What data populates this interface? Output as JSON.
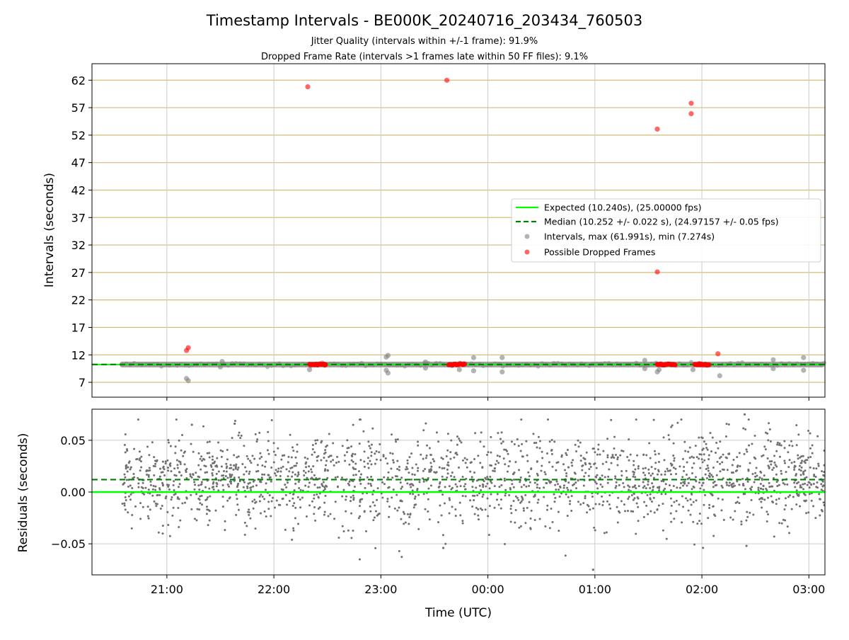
{
  "header": {
    "title": "Timestamp Intervals - BE000K_20240716_203434_760503",
    "subtitle_jitter": "Jitter Quality (intervals within +/-1 frame): 91.9%",
    "subtitle_dropped": "Dropped Frame Rate (intervals >1 frames late within 50 FF files): 9.1%"
  },
  "colors": {
    "expected": "#00ff00",
    "median": "#008000",
    "intervals": "#808080",
    "dropped": "#ff0000",
    "hgrid": "#d4bb78",
    "vgrid": "#cccccc"
  },
  "chart_data": [
    {
      "type": "scatter",
      "panel": "intervals",
      "ylabel": "Intervals (seconds)",
      "xlabel": "",
      "ylim": [
        4.3,
        65.0
      ],
      "xlim": [
        "20:18",
        "03:09"
      ],
      "grid": "on",
      "legend_position": "center-right",
      "yticks": [
        7,
        12,
        17,
        22,
        27,
        32,
        37,
        42,
        47,
        52,
        57,
        62
      ],
      "ytick_labels": [
        "7",
        "12",
        "17",
        "22",
        "27",
        "32",
        "37",
        "42",
        "47",
        "52",
        "57",
        "62"
      ],
      "x_range": [
        "20:35",
        "03:09"
      ],
      "reference_lines": [
        {
          "name": "Expected (10.240s), (25.00000 fps)",
          "value": 10.24,
          "style": "solid"
        },
        {
          "name": "Median (10.252 +/- 0.022 s), (24.97157 +/- 0.05 fps)",
          "value": 10.252,
          "style": "dashed"
        }
      ],
      "series": [
        {
          "name": "Intervals, max (61.991s), min (7.274s)",
          "outliers": [
            {
              "x": "21:11",
              "y": 7.7
            },
            {
              "x": "21:12",
              "y": 7.3
            },
            {
              "x": "21:30",
              "y": 9.8
            },
            {
              "x": "21:31",
              "y": 10.8
            },
            {
              "x": "22:20",
              "y": 9.3
            },
            {
              "x": "23:03",
              "y": 11.6
            },
            {
              "x": "23:04",
              "y": 11.9
            },
            {
              "x": "23:03",
              "y": 9.2
            },
            {
              "x": "23:04",
              "y": 8.7
            },
            {
              "x": "23:25",
              "y": 10.7
            },
            {
              "x": "23:25",
              "y": 9.6
            },
            {
              "x": "23:44",
              "y": 9.3
            },
            {
              "x": "23:52",
              "y": 11.5
            },
            {
              "x": "23:52",
              "y": 9.1
            },
            {
              "x": "00:08",
              "y": 11.5
            },
            {
              "x": "00:08",
              "y": 8.9
            },
            {
              "x": "01:28",
              "y": 11.0
            },
            {
              "x": "01:28",
              "y": 9.5
            },
            {
              "x": "01:35",
              "y": 8.9
            },
            {
              "x": "01:36",
              "y": 9.3
            },
            {
              "x": "01:55",
              "y": 9.3
            },
            {
              "x": "02:10",
              "y": 8.2
            },
            {
              "x": "02:40",
              "y": 11.1
            },
            {
              "x": "02:40",
              "y": 9.5
            },
            {
              "x": "02:57",
              "y": 11.5
            },
            {
              "x": "02:57",
              "y": 9.2
            }
          ]
        },
        {
          "name": "Possible Dropped Frames",
          "points": [
            {
              "x": "21:11",
              "y": 12.8
            },
            {
              "x": "21:12",
              "y": 13.3
            },
            {
              "x": "22:19",
              "y": 60.8
            },
            {
              "x": "23:37",
              "y": 61.99
            },
            {
              "x": "01:35",
              "y": 53.1
            },
            {
              "x": "01:35",
              "y": 27.1
            },
            {
              "x": "01:54",
              "y": 57.8
            },
            {
              "x": "01:54",
              "y": 55.9
            },
            {
              "x": "02:09",
              "y": 12.2
            }
          ],
          "clusters": [
            [
              "22:20",
              "22:29"
            ],
            [
              "23:38",
              "23:47"
            ],
            [
              "01:35",
              "01:45"
            ],
            [
              "01:56",
              "02:04"
            ]
          ]
        }
      ],
      "legend": [
        "Expected (10.240s), (25.00000 fps)",
        "Median (10.252 +/- 0.022 s), (24.97157 +/- 0.05 fps)",
        "Intervals, max (61.991s), min (7.274s)",
        "Possible Dropped Frames"
      ]
    },
    {
      "type": "scatter",
      "panel": "residuals",
      "ylabel": "Residuals (seconds)",
      "xlabel": "Time (UTC)",
      "ylim": [
        -0.08,
        0.08
      ],
      "yticks": [
        -0.05,
        0.0,
        0.05
      ],
      "ytick_labels": [
        "−0.05",
        "0.00",
        "0.05"
      ],
      "xticks": [
        "21:00",
        "22:00",
        "23:00",
        "00:00",
        "01:00",
        "02:00",
        "03:00"
      ],
      "xtick_labels": [
        "21:00",
        "22:00",
        "23:00",
        "00:00",
        "01:00",
        "02:00",
        "03:00"
      ],
      "grid": "on",
      "reference_lines": [
        {
          "value": 0.0,
          "style": "solid",
          "color": "#00ff00"
        },
        {
          "value": 0.012,
          "style": "dashed",
          "color": "#008000"
        }
      ],
      "residual_sample": {
        "x_range": [
          "20:35",
          "03:09"
        ],
        "mean": 0.012,
        "spread": 0.022,
        "count": 2000,
        "notable": [
          {
            "x": "02:24",
            "y": 0.075
          },
          {
            "x": "21:38",
            "y": 0.066
          },
          {
            "x": "21:14",
            "y": 0.065
          },
          {
            "x": "00:59",
            "y": -0.075
          },
          {
            "x": "02:25",
            "y": -0.052
          },
          {
            "x": "23:35",
            "y": -0.054
          }
        ]
      }
    }
  ]
}
